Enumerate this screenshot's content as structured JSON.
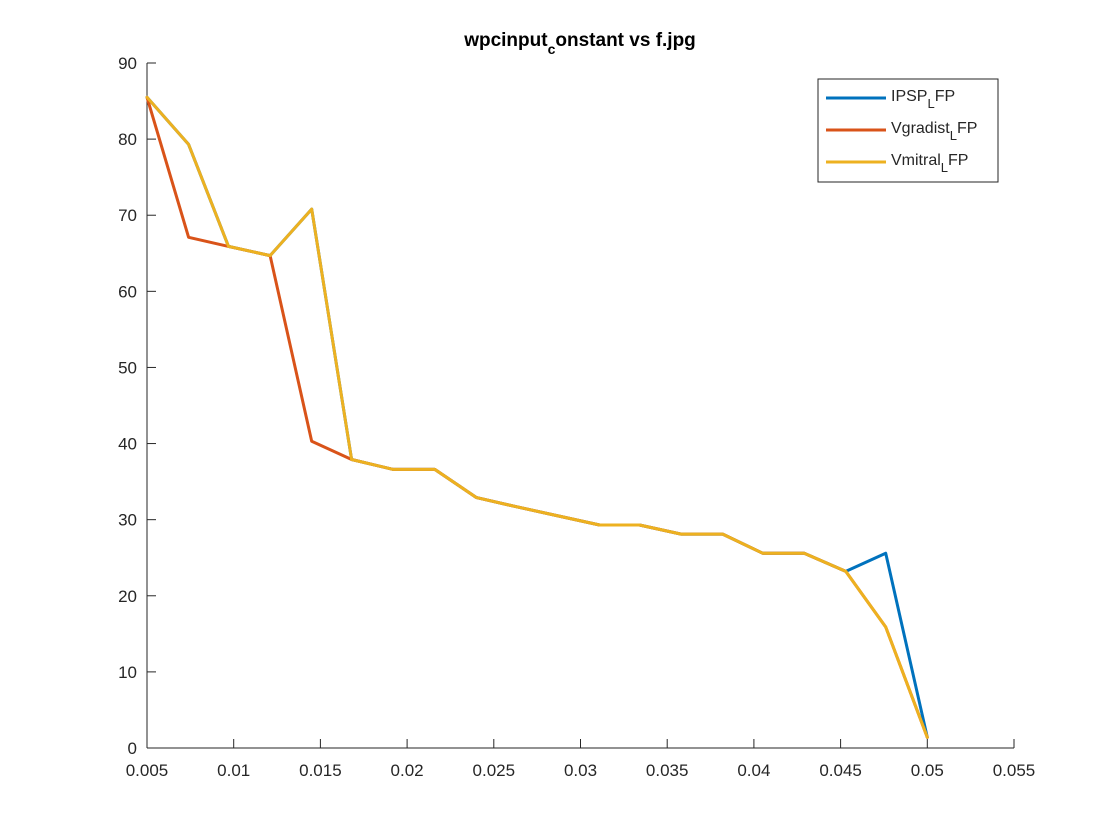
{
  "chart_data": {
    "type": "line",
    "title": {
      "main": "wpcinput",
      "sub": "c",
      "rest": "onstant vs f.jpg"
    },
    "xlabel": "",
    "ylabel": "",
    "xlim": [
      0.005,
      0.055
    ],
    "ylim": [
      0,
      90
    ],
    "xticks": [
      "0.005",
      "0.01",
      "0.015",
      "0.02",
      "0.025",
      "0.03",
      "0.035",
      "0.04",
      "0.045",
      "0.05",
      "0.055"
    ],
    "xtick_values": [
      0.005,
      0.01,
      0.015,
      0.02,
      0.025,
      0.03,
      0.035,
      0.04,
      0.045,
      0.05,
      0.055
    ],
    "yticks": [
      "0",
      "10",
      "20",
      "30",
      "40",
      "50",
      "60",
      "70",
      "80",
      "90"
    ],
    "ytick_values": [
      0,
      10,
      20,
      30,
      40,
      50,
      60,
      70,
      80,
      90
    ],
    "grid": false,
    "legend_position": "top-right",
    "series": [
      {
        "name": {
          "main": "IPSP",
          "sub": "L",
          "rest": "FP"
        },
        "color": "#0072BD",
        "points": [
          [
            0.005,
            85.5
          ],
          [
            0.0074,
            79.3
          ],
          [
            0.0097,
            65.9
          ],
          [
            0.0121,
            64.7
          ],
          [
            0.0145,
            70.8
          ],
          [
            0.0168,
            37.9
          ],
          [
            0.0192,
            36.6
          ],
          [
            0.0216,
            36.6
          ],
          [
            0.024,
            32.9
          ],
          [
            0.0263,
            31.7
          ],
          [
            0.0287,
            30.5
          ],
          [
            0.0311,
            29.3
          ],
          [
            0.0334,
            29.3
          ],
          [
            0.0358,
            28.1
          ],
          [
            0.0382,
            28.1
          ],
          [
            0.0405,
            25.6
          ],
          [
            0.0429,
            25.6
          ],
          [
            0.0453,
            23.2
          ],
          [
            0.0476,
            25.6
          ],
          [
            0.05,
            1.4
          ]
        ]
      },
      {
        "name": {
          "main": "Vgradist",
          "sub": "L",
          "rest": "FP"
        },
        "color": "#D95319",
        "points": [
          [
            0.005,
            85.5
          ],
          [
            0.0074,
            67.1
          ],
          [
            0.0097,
            65.9
          ],
          [
            0.0121,
            64.7
          ],
          [
            0.0145,
            40.3
          ],
          [
            0.0168,
            37.9
          ],
          [
            0.0192,
            36.6
          ],
          [
            0.0216,
            36.6
          ],
          [
            0.024,
            32.9
          ],
          [
            0.0263,
            31.7
          ],
          [
            0.0287,
            30.5
          ],
          [
            0.0311,
            29.3
          ],
          [
            0.0334,
            29.3
          ],
          [
            0.0358,
            28.1
          ],
          [
            0.0382,
            28.1
          ],
          [
            0.0405,
            25.6
          ],
          [
            0.0429,
            25.6
          ],
          [
            0.0453,
            23.2
          ],
          [
            0.0476,
            15.9
          ],
          [
            0.05,
            1.4
          ]
        ]
      },
      {
        "name": {
          "main": "Vmitral",
          "sub": "L",
          "rest": "FP"
        },
        "color": "#EDB120",
        "points": [
          [
            0.005,
            85.5
          ],
          [
            0.0074,
            79.3
          ],
          [
            0.0097,
            65.9
          ],
          [
            0.0121,
            64.7
          ],
          [
            0.0145,
            70.8
          ],
          [
            0.0168,
            37.9
          ],
          [
            0.0192,
            36.6
          ],
          [
            0.0216,
            36.6
          ],
          [
            0.024,
            32.9
          ],
          [
            0.0263,
            31.7
          ],
          [
            0.0287,
            30.5
          ],
          [
            0.0311,
            29.3
          ],
          [
            0.0334,
            29.3
          ],
          [
            0.0358,
            28.1
          ],
          [
            0.0382,
            28.1
          ],
          [
            0.0405,
            25.6
          ],
          [
            0.0429,
            25.6
          ],
          [
            0.0453,
            23.2
          ],
          [
            0.0476,
            15.9
          ],
          [
            0.05,
            1.4
          ]
        ]
      }
    ]
  }
}
